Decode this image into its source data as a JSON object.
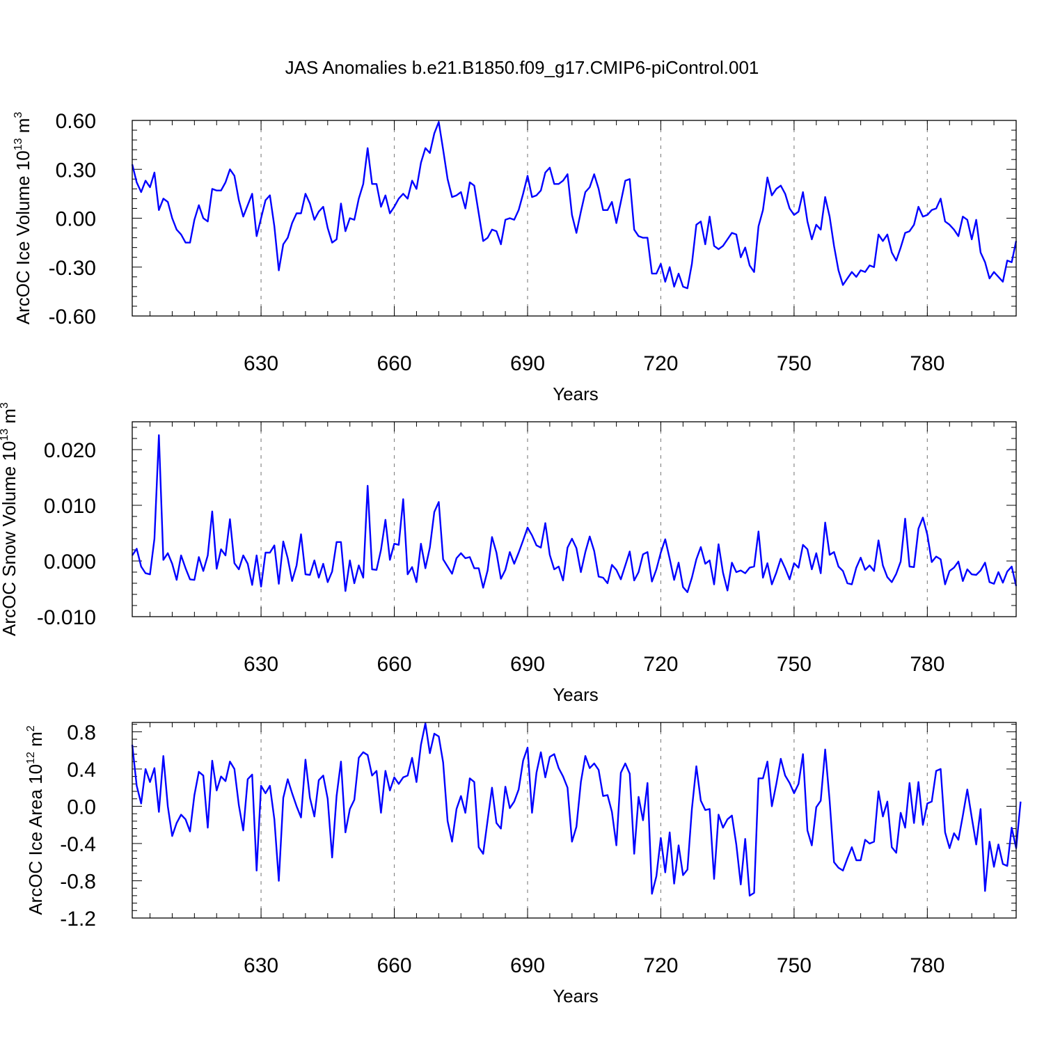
{
  "title": "JAS Anomalies b.e21.B1850.f09_g17.CMIP6-piControl.001",
  "colors": {
    "series": "#0000ff",
    "axes": "#000000",
    "grid": "#888888"
  },
  "chart_data": [
    {
      "type": "line",
      "name": "ice-volume",
      "ylabel": "ArcOC Ice Volume 10",
      "ylabel_exp": "13",
      "ylabel_unit_pre": " m",
      "ylabel_unit_exp": "3",
      "xlabel": "Years",
      "x_start": 601,
      "xlim": [
        601,
        800
      ],
      "ylim": [
        -0.6,
        0.6
      ],
      "yticks": [
        -0.6,
        -0.3,
        0.0,
        0.3,
        0.6
      ],
      "ytick_labels": [
        "-0.60",
        "-0.30",
        "0.00",
        "0.30",
        "0.60"
      ],
      "xticks": [
        630,
        660,
        690,
        720,
        750,
        780
      ],
      "xtick_labels": [
        "630",
        "660",
        "690",
        "720",
        "750",
        "780"
      ],
      "values": [
        0.33,
        0.22,
        0.16,
        0.23,
        0.19,
        0.28,
        0.05,
        0.12,
        0.1,
        0.0,
        -0.07,
        -0.1,
        -0.15,
        -0.15,
        -0.01,
        0.08,
        0.0,
        -0.02,
        0.18,
        0.17,
        0.17,
        0.22,
        0.3,
        0.26,
        0.11,
        0.01,
        0.08,
        0.15,
        -0.11,
        0.0,
        0.11,
        0.14,
        -0.05,
        -0.32,
        -0.16,
        -0.12,
        -0.03,
        0.03,
        0.03,
        0.15,
        0.09,
        -0.01,
        0.04,
        0.07,
        -0.06,
        -0.15,
        -0.13,
        0.09,
        -0.08,
        0.0,
        -0.01,
        0.12,
        0.21,
        0.43,
        0.21,
        0.21,
        0.07,
        0.14,
        0.03,
        0.07,
        0.12,
        0.15,
        0.12,
        0.23,
        0.18,
        0.34,
        0.43,
        0.4,
        0.52,
        0.59,
        0.42,
        0.24,
        0.13,
        0.14,
        0.16,
        0.06,
        0.22,
        0.2,
        0.03,
        -0.14,
        -0.12,
        -0.07,
        -0.08,
        -0.16,
        -0.01,
        0.0,
        -0.01,
        0.05,
        0.15,
        0.26,
        0.13,
        0.14,
        0.17,
        0.28,
        0.31,
        0.21,
        0.21,
        0.23,
        0.27,
        0.02,
        -0.09,
        0.04,
        0.16,
        0.19,
        0.27,
        0.18,
        0.05,
        0.05,
        0.1,
        -0.03,
        0.1,
        0.23,
        0.24,
        -0.07,
        -0.11,
        -0.12,
        -0.12,
        -0.34,
        -0.34,
        -0.28,
        -0.39,
        -0.3,
        -0.42,
        -0.34,
        -0.42,
        -0.43,
        -0.28,
        -0.04,
        -0.02,
        -0.16,
        0.01,
        -0.17,
        -0.19,
        -0.17,
        -0.13,
        -0.09,
        -0.1,
        -0.24,
        -0.18,
        -0.29,
        -0.33,
        -0.05,
        0.05,
        0.25,
        0.14,
        0.18,
        0.2,
        0.15,
        0.06,
        0.02,
        0.04,
        0.16,
        -0.02,
        -0.13,
        -0.04,
        -0.07,
        0.13,
        0.01,
        -0.17,
        -0.32,
        -0.41,
        -0.37,
        -0.33,
        -0.36,
        -0.32,
        -0.33,
        -0.29,
        -0.3,
        -0.1,
        -0.14,
        -0.1,
        -0.21,
        -0.26,
        -0.18,
        -0.09,
        -0.08,
        -0.04,
        0.07,
        0.01,
        0.02,
        0.05,
        0.06,
        0.12,
        -0.02,
        -0.04,
        -0.07,
        -0.11,
        0.01,
        -0.01,
        -0.13,
        -0.01,
        -0.21,
        -0.27,
        -0.37,
        -0.33,
        -0.36,
        -0.39,
        -0.26,
        -0.27,
        -0.14
      ]
    },
    {
      "type": "line",
      "name": "snow-volume",
      "ylabel": "ArcOC Snow Volume 10",
      "ylabel_exp": "13",
      "ylabel_unit_pre": " m",
      "ylabel_unit_exp": "3",
      "xlabel": "Years",
      "x_start": 601,
      "xlim": [
        601,
        800
      ],
      "ylim": [
        -0.01,
        0.025
      ],
      "yticks": [
        -0.01,
        0.0,
        0.01,
        0.02
      ],
      "ytick_labels": [
        "-0.010",
        "0.000",
        "0.010",
        "0.020"
      ],
      "xticks": [
        630,
        660,
        690,
        720,
        750,
        780
      ],
      "xtick_labels": [
        "630",
        "660",
        "690",
        "720",
        "750",
        "780"
      ],
      "values": [
        0.001,
        0.0022,
        -0.001,
        -0.0022,
        -0.0024,
        0.004,
        0.0226,
        0.0002,
        0.0014,
        -0.0005,
        -0.0034,
        0.001,
        -0.0013,
        -0.0033,
        -0.0034,
        0.0007,
        -0.0018,
        0.001,
        0.0089,
        -0.0014,
        0.0021,
        0.001,
        0.0075,
        -0.0004,
        -0.0015,
        0.001,
        -0.0005,
        -0.0043,
        0.001,
        -0.0046,
        0.0015,
        0.0015,
        0.0028,
        -0.0041,
        0.0035,
        0.0005,
        -0.0036,
        -0.0008,
        0.0048,
        -0.0024,
        -0.0025,
        0.0001,
        -0.003,
        -0.0005,
        -0.0038,
        -0.0019,
        0.0034,
        0.0034,
        -0.0054,
        0.0001,
        -0.004,
        -0.0008,
        -0.003,
        0.0135,
        -0.0015,
        -0.0016,
        0.002,
        0.0074,
        0.0002,
        0.0031,
        0.0029,
        0.0111,
        -0.0024,
        -0.0011,
        -0.0038,
        0.0031,
        -0.0013,
        0.0024,
        0.0088,
        0.0106,
        0.0003,
        -0.001,
        -0.0023,
        0.0005,
        0.0014,
        0.0005,
        0.0007,
        -0.0013,
        -0.0013,
        -0.0048,
        -0.0017,
        0.0043,
        0.0015,
        -0.0032,
        -0.0016,
        0.0016,
        -0.0005,
        0.0015,
        0.0037,
        0.006,
        0.0046,
        0.0028,
        0.0024,
        0.0068,
        0.0011,
        -0.0015,
        -0.001,
        -0.0035,
        0.0024,
        0.004,
        0.0023,
        -0.002,
        0.0016,
        0.0044,
        0.0018,
        -0.0028,
        -0.003,
        -0.004,
        -0.0007,
        -0.0016,
        -0.0033,
        -0.0008,
        0.0017,
        -0.0035,
        -0.002,
        0.0012,
        0.0016,
        -0.0037,
        -0.0015,
        0.0015,
        0.0039,
        0.0004,
        -0.0034,
        -0.0003,
        -0.0047,
        -0.0056,
        -0.003,
        0.0003,
        0.0025,
        -0.0005,
        0.0001,
        -0.0042,
        0.003,
        -0.0021,
        -0.0053,
        -0.0003,
        -0.002,
        -0.0017,
        -0.0022,
        -0.0012,
        -0.001,
        0.0053,
        -0.003,
        -0.0004,
        -0.0042,
        -0.0021,
        0.0004,
        -0.0013,
        -0.0033,
        -0.0004,
        -0.0012,
        0.0029,
        0.0021,
        -0.0015,
        0.0014,
        -0.0022,
        0.0069,
        0.0011,
        0.0016,
        -0.001,
        -0.0018,
        -0.004,
        -0.0042,
        -0.0012,
        0.0006,
        -0.0016,
        -0.0008,
        -0.0018,
        0.0037,
        -0.0008,
        -0.0029,
        -0.0038,
        -0.0023,
        -0.0001,
        0.0076,
        -0.001,
        -0.0011,
        0.0058,
        0.0078,
        0.0047,
        -0.0002,
        0.0008,
        0.0003,
        -0.0042,
        -0.0018,
        -0.0012,
        -0.0001,
        -0.0036,
        -0.0015,
        -0.0024,
        -0.0025,
        -0.0017,
        -0.0003,
        -0.0038,
        -0.0041,
        -0.002,
        -0.0039,
        -0.0019,
        -0.001,
        -0.0045
      ]
    },
    {
      "type": "line",
      "name": "ice-area",
      "ylabel": "ArcOC Ice Area 10",
      "ylabel_exp": "12",
      "ylabel_unit_pre": " m",
      "ylabel_unit_exp": "2",
      "xlabel": "Years",
      "x_start": 601,
      "xlim": [
        601,
        800
      ],
      "ylim": [
        -1.2,
        0.9
      ],
      "yticks": [
        -1.2,
        -0.8,
        -0.4,
        0.0,
        0.4,
        0.8
      ],
      "ytick_labels": [
        "-1.2",
        "-0.8",
        "-0.4",
        "0.0",
        "0.4",
        "0.8"
      ],
      "xticks": [
        630,
        660,
        690,
        720,
        750,
        780
      ],
      "xtick_labels": [
        "630",
        "660",
        "690",
        "720",
        "750",
        "780"
      ],
      "values": [
        0.66,
        0.22,
        0.03,
        0.4,
        0.26,
        0.41,
        -0.06,
        0.54,
        0.0,
        -0.32,
        -0.18,
        -0.09,
        -0.14,
        -0.27,
        0.12,
        0.37,
        0.33,
        -0.23,
        0.49,
        0.17,
        0.32,
        0.27,
        0.48,
        0.4,
        0.01,
        -0.26,
        0.29,
        0.34,
        -0.69,
        0.22,
        0.14,
        0.22,
        -0.14,
        -0.8,
        0.09,
        0.29,
        0.14,
        0.0,
        -0.12,
        0.5,
        0.09,
        -0.11,
        0.28,
        0.33,
        0.08,
        -0.55,
        0.11,
        0.48,
        -0.28,
        -0.03,
        0.07,
        0.52,
        0.58,
        0.55,
        0.33,
        0.38,
        -0.07,
        0.38,
        0.17,
        0.31,
        0.24,
        0.31,
        0.33,
        0.52,
        0.26,
        0.66,
        0.89,
        0.57,
        0.78,
        0.75,
        0.47,
        -0.16,
        -0.38,
        -0.03,
        0.11,
        -0.07,
        0.3,
        0.26,
        -0.44,
        -0.51,
        -0.15,
        0.2,
        -0.18,
        -0.24,
        0.21,
        -0.02,
        0.05,
        0.18,
        0.49,
        0.63,
        -0.07,
        0.36,
        0.58,
        0.31,
        0.53,
        0.56,
        0.41,
        0.32,
        0.2,
        -0.38,
        -0.22,
        0.26,
        0.54,
        0.41,
        0.46,
        0.39,
        0.11,
        0.12,
        -0.06,
        -0.42,
        0.36,
        0.46,
        0.35,
        -0.51,
        0.1,
        -0.15,
        0.25,
        -0.94,
        -0.75,
        -0.34,
        -0.71,
        -0.28,
        -0.83,
        -0.42,
        -0.74,
        -0.68,
        -0.03,
        0.43,
        0.06,
        -0.04,
        -0.03,
        -0.78,
        -0.09,
        -0.23,
        -0.14,
        -0.1,
        -0.41,
        -0.84,
        -0.35,
        -0.96,
        -0.93,
        0.3,
        0.3,
        0.48,
        0.0,
        0.24,
        0.51,
        0.33,
        0.25,
        0.14,
        0.24,
        0.56,
        -0.26,
        -0.42,
        -0.01,
        0.06,
        0.61,
        0.06,
        -0.6,
        -0.66,
        -0.69,
        -0.56,
        -0.44,
        -0.58,
        -0.58,
        -0.36,
        -0.4,
        -0.38,
        0.16,
        -0.11,
        0.05,
        -0.44,
        -0.5,
        -0.07,
        -0.23,
        0.25,
        -0.18,
        0.26,
        -0.2,
        0.03,
        0.05,
        0.38,
        0.4,
        -0.28,
        -0.45,
        -0.29,
        -0.36,
        -0.1,
        0.18,
        -0.12,
        -0.41,
        -0.03,
        -0.91,
        -0.38,
        -0.65,
        -0.41,
        -0.62,
        -0.64,
        -0.23,
        -0.45,
        0.05
      ]
    }
  ]
}
